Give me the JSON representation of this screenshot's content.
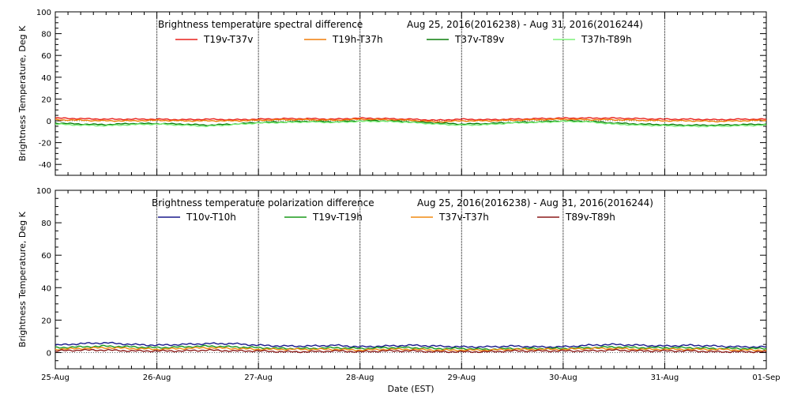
{
  "xlabel": "Date (EST)",
  "x_ticks": [
    "25-Aug",
    "26-Aug",
    "27-Aug",
    "28-Aug",
    "29-Aug",
    "30-Aug",
    "31-Aug",
    "01-Sep"
  ],
  "chart_data": [
    {
      "type": "line",
      "title": "Brightness temperature spectral difference",
      "date_range": "Aug 25, 2016(2016238) - Aug 31, 2016(2016244)",
      "ylabel": "Brightness Temperature, Deg K",
      "ylim": [
        -50,
        100
      ],
      "y_ticks": [
        "100",
        "80",
        "60",
        "40",
        "20",
        "0",
        "-20",
        "-40"
      ],
      "x": [
        0,
        0.25,
        0.5,
        0.75,
        1,
        1.25,
        1.5,
        1.75,
        2,
        2.25,
        2.5,
        2.75,
        3,
        3.25,
        3.5,
        3.75,
        4,
        4.25,
        4.5,
        4.75,
        5,
        5.25,
        5.5,
        5.75,
        6,
        6.25,
        6.5,
        6.75,
        7
      ],
      "x_unit": "days since 25-Aug 00:00",
      "series": [
        {
          "name": "T19v-T37v",
          "color": "#e8211b",
          "values": [
            2.5,
            2,
            1.5,
            1.5,
            1.5,
            1,
            1.5,
            1,
            1.5,
            2,
            2,
            1.5,
            2.5,
            2,
            1.5,
            0.5,
            1.5,
            1,
            1.5,
            2,
            2.5,
            2.5,
            2.5,
            2,
            1.5,
            1.5,
            1,
            1.5,
            1.5
          ]
        },
        {
          "name": "T19h-T37h",
          "color": "#f07d0a",
          "values": [
            1,
            0.5,
            0,
            0,
            0.5,
            0,
            0,
            0,
            0.5,
            1,
            1,
            0.5,
            1.5,
            1,
            0.5,
            -1,
            0,
            0,
            0.5,
            1,
            1.5,
            1,
            1,
            0.5,
            0,
            0,
            -0.5,
            0,
            0.5
          ]
        },
        {
          "name": "T37v-T89v",
          "color": "#0b7d0b",
          "values": [
            -2,
            -3,
            -3.5,
            -2.5,
            -2.5,
            -3,
            -4,
            -3,
            -1.5,
            -1,
            -0.5,
            -1,
            0,
            0,
            -1,
            -2,
            -3,
            -2.5,
            -1.5,
            -1,
            0,
            -0.5,
            -2,
            -3,
            -3.5,
            -4,
            -4,
            -3.5,
            -3
          ]
        },
        {
          "name": "T37h-T89h",
          "color": "#7df07a",
          "values": [
            -3,
            -4,
            -4.5,
            -3.5,
            -3,
            -4,
            -5,
            -3.5,
            -2,
            -1.5,
            -1,
            -1.5,
            -0.5,
            -0.5,
            -1.5,
            -3,
            -4,
            -3.5,
            -2,
            -1.5,
            -0.5,
            -1,
            -3,
            -4,
            -4.5,
            -5,
            -5,
            -4.5,
            -4
          ]
        }
      ]
    },
    {
      "type": "line",
      "title": "Brightness temperature polarization difference",
      "date_range": "Aug 25, 2016(2016238) - Aug 31, 2016(2016244)",
      "ylabel": "Brightness Temperature, Deg K",
      "ylim": [
        -10,
        100
      ],
      "y_ticks": [
        "100",
        "80",
        "60",
        "40",
        "20",
        "0"
      ],
      "x": [
        0,
        0.25,
        0.5,
        0.75,
        1,
        1.25,
        1.5,
        1.75,
        2,
        2.25,
        2.5,
        2.75,
        3,
        3.25,
        3.5,
        3.75,
        4,
        4.25,
        4.5,
        4.75,
        5,
        5.25,
        5.5,
        5.75,
        6,
        6.25,
        6.5,
        6.75,
        7
      ],
      "x_unit": "days since 25-Aug 00:00",
      "series": [
        {
          "name": "T10v-T10h",
          "color": "#1a1a8c",
          "values": [
            4.5,
            5.5,
            6,
            5,
            4.5,
            5,
            5.5,
            5.5,
            4.5,
            4,
            4,
            4.5,
            3.5,
            4,
            4.5,
            4,
            3.5,
            3.5,
            4,
            3.5,
            3.5,
            4.5,
            5,
            4.5,
            4,
            4.5,
            4,
            3.5,
            3.5
          ]
        },
        {
          "name": "T19v-T19h",
          "color": "#1a9a1a",
          "values": [
            3,
            3.5,
            4,
            3.5,
            3,
            3.5,
            4,
            3.5,
            3,
            2.5,
            2.5,
            3,
            2.5,
            3,
            3,
            2.5,
            2.5,
            2,
            2.5,
            2.5,
            2.5,
            3,
            3.5,
            3,
            3,
            3,
            2.5,
            2.5,
            2.5
          ]
        },
        {
          "name": "T37v-T37h",
          "color": "#f08a10",
          "values": [
            2,
            2.5,
            3,
            2.5,
            2,
            2.5,
            3,
            2.5,
            2,
            2,
            2,
            2,
            1.5,
            2,
            2,
            1.5,
            1.5,
            1.5,
            2,
            2,
            2,
            2.5,
            2.5,
            2,
            2,
            2,
            2,
            1.5,
            1.5
          ]
        },
        {
          "name": "T89v-T89h",
          "color": "#8b1a1a",
          "values": [
            1,
            1.5,
            1.5,
            1,
            1,
            1,
            1.5,
            1,
            1,
            0.5,
            0.5,
            1,
            0.5,
            1,
            1,
            0.5,
            0.5,
            0.5,
            1,
            1,
            1,
            1,
            1.5,
            1,
            1,
            1,
            0.5,
            0.5,
            0.5
          ]
        }
      ]
    }
  ]
}
